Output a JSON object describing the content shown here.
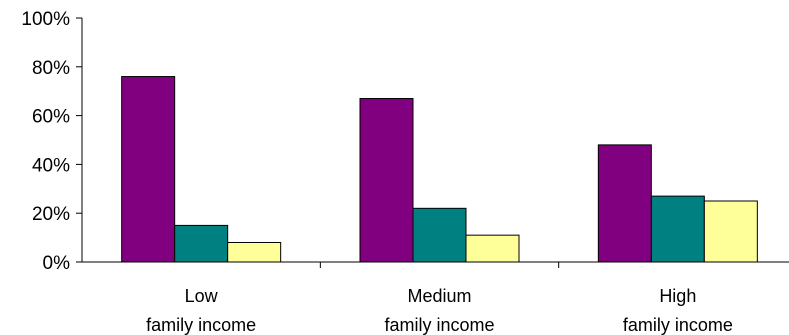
{
  "chart_data": {
    "type": "bar",
    "categories": [
      [
        "Low",
        "family income"
      ],
      [
        "Medium",
        "family income"
      ],
      [
        "High",
        "family income"
      ]
    ],
    "series": [
      {
        "color": "#800080",
        "values": [
          76,
          67,
          48
        ]
      },
      {
        "color": "#008080",
        "values": [
          15,
          22,
          27
        ]
      },
      {
        "color": "#FFFF99",
        "values": [
          8,
          11,
          25
        ]
      }
    ],
    "ylim": [
      0,
      100
    ],
    "yticks": [
      0,
      20,
      40,
      60,
      80,
      100
    ],
    "ytick_labels": [
      "0%",
      "20%",
      "40%",
      "60%",
      "80%",
      "100%"
    ],
    "grid": false,
    "legend": "none"
  }
}
